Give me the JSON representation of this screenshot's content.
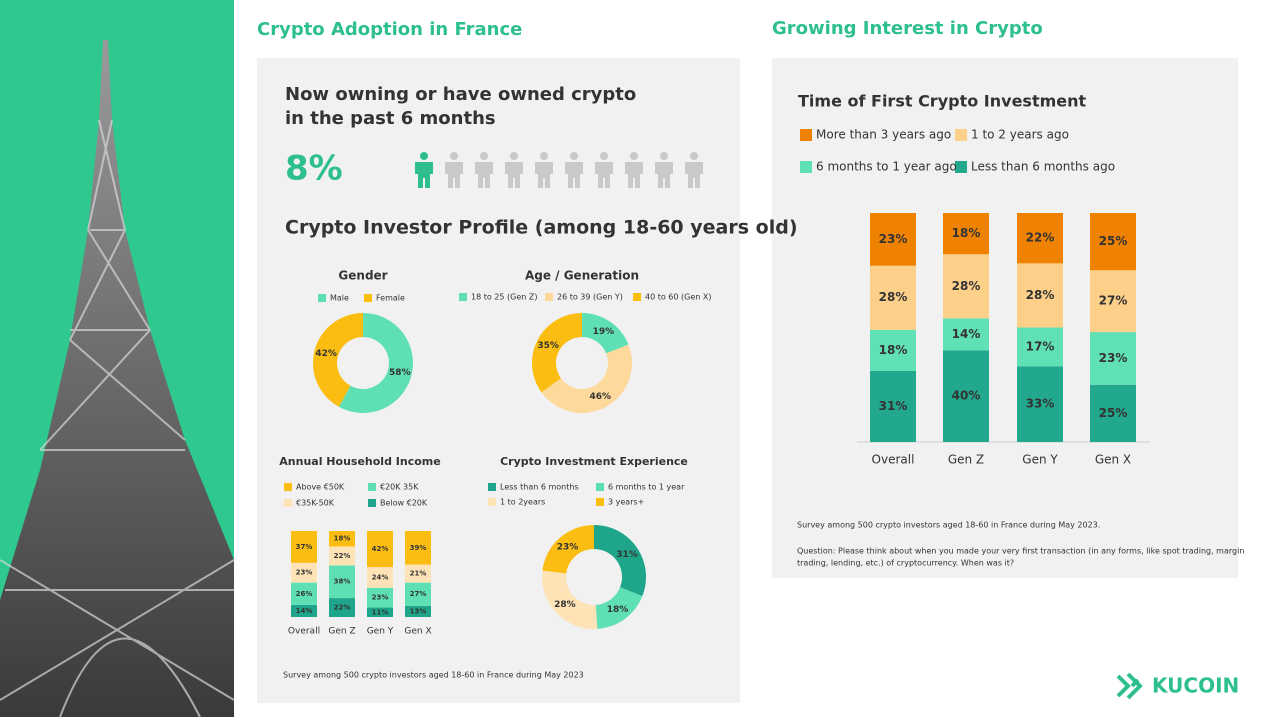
{
  "page": {
    "left_title": "Crypto Adoption in France",
    "right_title": "Growing Interest in Crypto",
    "profile_title": "Crypto Investor Profile (among 18-60 years old)",
    "left_note": "Survey among 500 crypto investors aged 18-60 in France during May 2023",
    "right_note": "Survey among 500 crypto investors aged 18-60 in France during May 2023.",
    "question": [
      "Question: Please think about when you made your very first transaction (in any forms, like spot trading, margin",
      "trading, lending, etc.) of cryptocurrency. When was it?"
    ],
    "brand": "KUCOIN"
  },
  "chart_data": [
    {
      "type": "pictogram",
      "title": [
        "Now owning or have owned crypto",
        "in the past 6 months"
      ],
      "values": [
        8
      ],
      "value_labels": [
        "8%"
      ],
      "color": "#2dbf8e"
    },
    {
      "type": "donut",
      "title": "Gender",
      "categories": [
        "Male",
        "Female"
      ],
      "values": [
        58,
        42
      ],
      "value_labels": [
        "58%",
        "42%"
      ],
      "colors": [
        "#5ee0b4",
        "#fbbd12"
      ]
    },
    {
      "type": "donut",
      "title": "Age / Generation",
      "categories": [
        "18 to 25 (Gen Z)",
        "26 to 39  (Gen Y)",
        "40 to 60 (Gen X)"
      ],
      "values": [
        19,
        46,
        35
      ],
      "value_labels": [
        "19%",
        "46%",
        "35%"
      ],
      "colors": [
        "#5ee0b4",
        "#fdd99b",
        "#fbbd12"
      ]
    },
    {
      "type": "stacked_bar",
      "title": "Annual Household Income",
      "categories": [
        "Overall",
        "Gen Z",
        "Gen Y",
        "Gen X"
      ],
      "series": [
        {
          "name": "Below €20K",
          "color": "#1fa58a",
          "values": [
            14,
            22,
            11,
            13
          ],
          "value_labels": [
            "14%",
            "22%",
            "11%",
            "13%"
          ]
        },
        {
          "name": "€20K 35K",
          "color": "#5ee0b4",
          "values": [
            26,
            38,
            23,
            27
          ],
          "value_labels": [
            "26%",
            "38%",
            "23%",
            "27%"
          ]
        },
        {
          "name": "€35K-50K",
          "color": "#fde3b6",
          "values": [
            23,
            22,
            24,
            21
          ],
          "value_labels": [
            "23%",
            "22%",
            "24%",
            "21%"
          ]
        },
        {
          "name": "Above €50K",
          "color": "#fbbd12",
          "values": [
            37,
            18,
            42,
            39
          ],
          "value_labels": [
            "37%",
            "18%",
            "42%",
            "39%"
          ]
        }
      ]
    },
    {
      "type": "donut",
      "title": "Crypto Investment Experience",
      "categories": [
        "Less than 6 months",
        "6 months to 1 year",
        "1 to 2years",
        "3 years+"
      ],
      "values": [
        31,
        18,
        28,
        23
      ],
      "value_labels": [
        "31%",
        "18%",
        "28%",
        "23%"
      ],
      "colors": [
        "#1fa58a",
        "#5ee0b4",
        "#fde3b6",
        "#fbbd12"
      ]
    },
    {
      "type": "stacked_bar",
      "title": "Time of First Crypto Investment",
      "categories": [
        "Overall",
        "Gen Z",
        "Gen Y",
        "Gen X"
      ],
      "series": [
        {
          "name": "Less than 6 months ago",
          "color": "#22a88c",
          "values": [
            31,
            40,
            33,
            25
          ],
          "value_labels": [
            "31%",
            "40%",
            "33%",
            "25%"
          ]
        },
        {
          "name": "6 months to 1 year ago",
          "color": "#5fe0b5",
          "values": [
            18,
            14,
            17,
            23
          ],
          "value_labels": [
            "18%",
            "14%",
            "17%",
            "23%"
          ]
        },
        {
          "name": "1 to 2 years ago",
          "color": "#fdd08a",
          "values": [
            28,
            28,
            28,
            27
          ],
          "value_labels": [
            "28%",
            "28%",
            "28%",
            "27%"
          ]
        },
        {
          "name": "More than 3 years ago",
          "color": "#ef8200",
          "values": [
            23,
            18,
            22,
            25
          ],
          "value_labels": [
            "23%",
            "18%",
            "22%",
            "25%"
          ]
        }
      ]
    }
  ]
}
